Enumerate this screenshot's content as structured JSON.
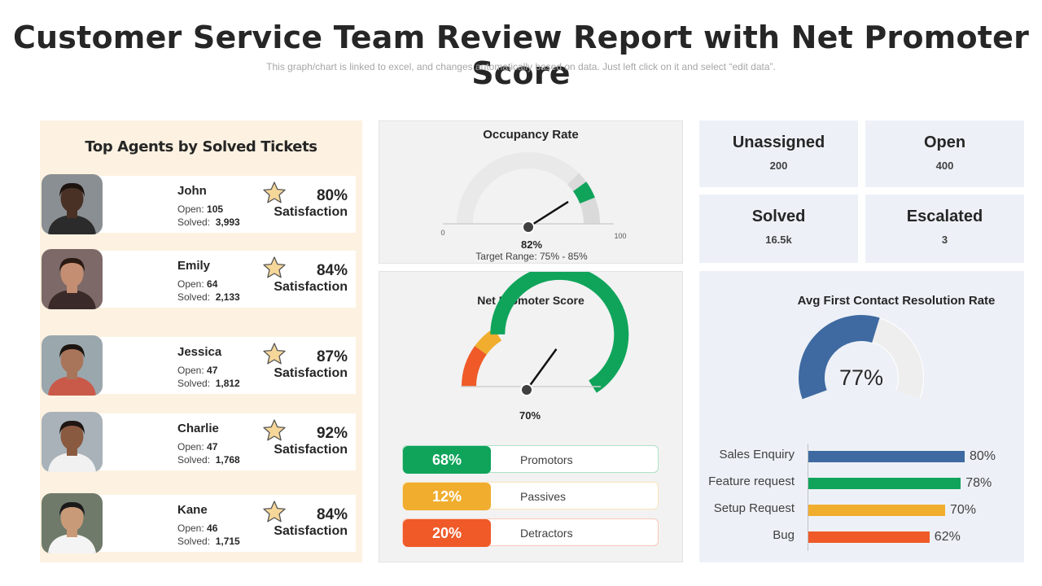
{
  "header": {
    "title": "Customer Service Team Review Report with Net Promoter Score",
    "subtitle": "This graph/chart is linked to excel, and changes automatically based on data. Just left click on it and select “edit data”."
  },
  "agents": {
    "title": "Top Agents by Solved Tickets",
    "open_label": "Open:",
    "solved_label": "Solved:",
    "satisfaction_label": "Satisfaction",
    "list": [
      {
        "name": "John",
        "open": "105",
        "solved": "3,993",
        "satisfaction": "80%"
      },
      {
        "name": "Emily",
        "open": "64",
        "solved": "2,133",
        "satisfaction": "84%"
      },
      {
        "name": "Jessica",
        "open": "47",
        "solved": "1,812",
        "satisfaction": "87%"
      },
      {
        "name": "Charlie",
        "open": "47",
        "solved": "1,768",
        "satisfaction": "92%"
      },
      {
        "name": "Kane",
        "open": "46",
        "solved": "1,715",
        "satisfaction": "84%"
      }
    ]
  },
  "occupancy": {
    "title": "Occupancy Rate",
    "value_text": "82%",
    "value": 82,
    "min_label": "0",
    "max_label": "100",
    "target_text": "Target  Range:  75% - 85%"
  },
  "nps": {
    "title": "Net Promoter Score",
    "value_text": "70%",
    "value": 70,
    "items": [
      {
        "pct": "68%",
        "label": "Promotors",
        "color": "#10a45b"
      },
      {
        "pct": "12%",
        "label": "Passives",
        "color": "#f0ad2e"
      },
      {
        "pct": "20%",
        "label": "Detractors",
        "color": "#ef5a28"
      }
    ]
  },
  "kpis": [
    {
      "label": "Unassigned",
      "value": "200"
    },
    {
      "label": "Open",
      "value": "400"
    },
    {
      "label": "Solved",
      "value": "16.5k"
    },
    {
      "label": "Escalated",
      "value": "3"
    }
  ],
  "fcr": {
    "title": "Avg First Contact Resolution Rate",
    "value_text": "77%",
    "value": 77
  },
  "chart_data": {
    "type": "bar",
    "orientation": "horizontal",
    "categories": [
      "Sales Enquiry",
      "Feature request",
      "Setup Request",
      "Bug"
    ],
    "values": [
      80,
      78,
      70,
      62
    ],
    "value_labels": [
      "80%",
      "78%",
      "70%",
      "62%"
    ],
    "colors": [
      "#3f6aa1",
      "#10a45b",
      "#f0ad2e",
      "#ef5a28"
    ],
    "title": "",
    "xlim": [
      0,
      100
    ]
  },
  "colors": {
    "agents_bg": "#fdf2e1",
    "panel_gray": "#f2f2f2",
    "panel_blue": "#edf1f7",
    "accent_blue": "#3f6aa1",
    "green": "#10a45b",
    "amber": "#f0ad2e",
    "orange": "#ef5a28"
  },
  "icons": {
    "star": "star-icon",
    "avatar": "avatar"
  }
}
